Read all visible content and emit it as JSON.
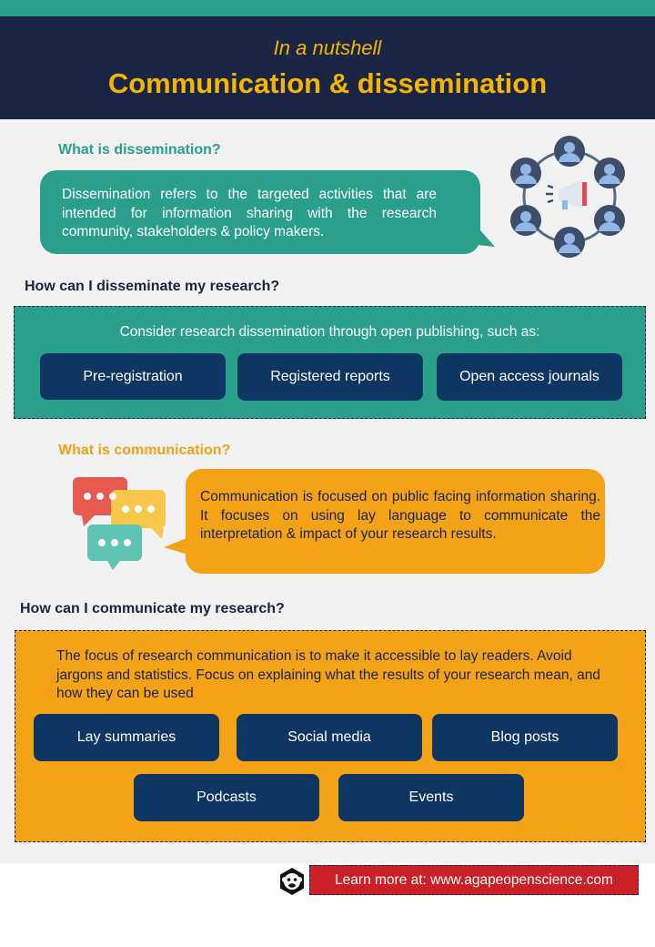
{
  "header": {
    "subtitle": "In a nutshell",
    "title": "Communication & dissemination"
  },
  "dissemination": {
    "question": "What is dissemination?",
    "answer": "Dissemination refers to the targeted activities that are intended for information sharing with the research community, stakeholders & policy makers."
  },
  "disseminate_how": {
    "question": "How can I disseminate my research?",
    "lead": "Consider research dissemination through open publishing, such as:",
    "options": [
      "Pre-registration",
      "Registered reports",
      "Open access journals"
    ]
  },
  "communication": {
    "question": "What is communication?",
    "answer": "Communication is focused on public facing information sharing. It focuses on using lay language to communicate the interpretation & impact of your research results."
  },
  "communicate_how": {
    "question": "How can I communicate my research?",
    "lead": "The focus of research communication is to make it accessible to lay readers. Avoid jargons and statistics. Focus on explaining what the results of your research mean, and how they can be used",
    "options": [
      "Lay summaries",
      "Social media",
      "Blog posts",
      "Podcasts",
      "Events"
    ]
  },
  "footer": {
    "link_text": "Learn more at: www.agapeopenscience.com"
  },
  "colors": {
    "navy": "#1a2544",
    "teal": "#2aa08a",
    "orange": "#f5a316",
    "gold": "#f4b400",
    "pill": "#0e3663",
    "red": "#cc2027"
  },
  "icons": [
    "network-megaphone-icon",
    "chat-bubbles-icon",
    "monkey-logo-icon"
  ]
}
